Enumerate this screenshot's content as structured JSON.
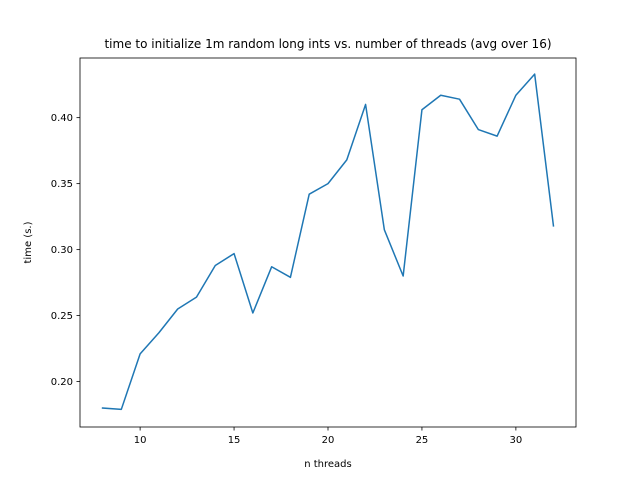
{
  "chart_data": {
    "type": "line",
    "title": "time to initialize 1m random long ints vs. number of threads (avg over 16)",
    "xlabel": "n threads",
    "ylabel": "time (s.)",
    "xlim": [
      6.8,
      33.2
    ],
    "ylim": [
      0.1656,
      0.4452
    ],
    "xticks": [
      10,
      15,
      20,
      25,
      30
    ],
    "yticks": [
      0.2,
      0.25,
      0.3,
      0.35,
      0.4
    ],
    "xtick_labels": [
      "10",
      "15",
      "20",
      "25",
      "30"
    ],
    "ytick_labels": [
      "0.20",
      "0.25",
      "0.30",
      "0.35",
      "0.40"
    ],
    "grid": false,
    "series": [
      {
        "color": "#1f77b4",
        "x": [
          8,
          9,
          10,
          11,
          12,
          13,
          14,
          15,
          16,
          17,
          18,
          19,
          20,
          21,
          22,
          23,
          24,
          25,
          26,
          27,
          28,
          29,
          30,
          31,
          32
        ],
        "values": [
          0.18,
          0.179,
          0.221,
          0.237,
          0.255,
          0.264,
          0.288,
          0.297,
          0.252,
          0.287,
          0.279,
          0.342,
          0.35,
          0.368,
          0.41,
          0.315,
          0.28,
          0.406,
          0.417,
          0.414,
          0.391,
          0.386,
          0.417,
          0.433,
          0.318
        ]
      }
    ]
  }
}
